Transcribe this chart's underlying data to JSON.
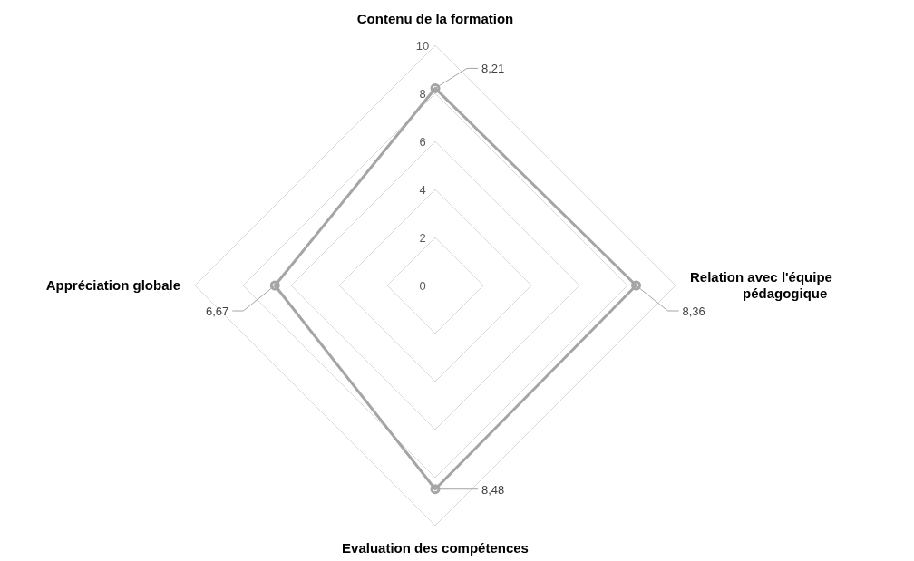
{
  "chart_data": {
    "type": "radar",
    "categories": [
      "Contenu de la formation",
      "Relation avec l'équipe pédagogique",
      "Evaluation des compétences",
      "Appréciation globale"
    ],
    "series": [
      {
        "color": "#a5a5a5",
        "values": [
          8.21,
          8.36,
          8.48,
          6.67
        ],
        "value_labels": [
          "8,21",
          "8,36",
          "8,48",
          "6,67"
        ]
      }
    ],
    "ylim": [
      0,
      10
    ],
    "yticks": [
      0,
      2,
      4,
      6,
      8,
      10
    ],
    "grid": true,
    "marker": "circle",
    "line_style": "solid",
    "legend": false
  }
}
